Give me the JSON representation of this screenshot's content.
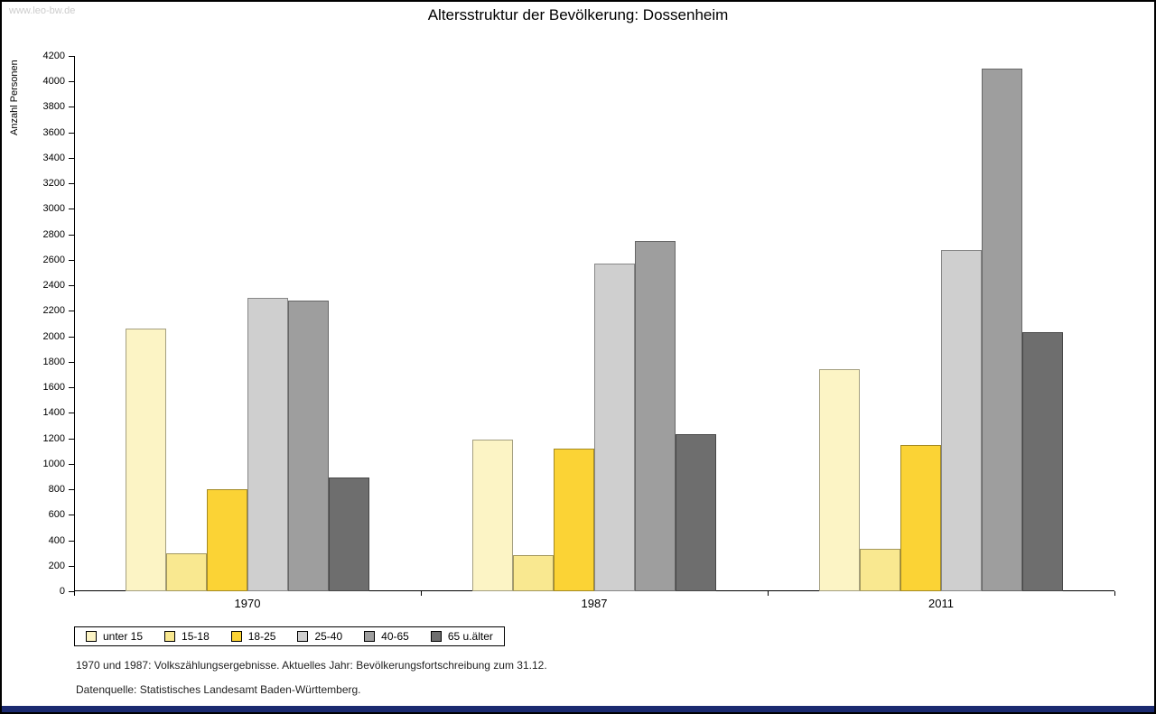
{
  "page": {
    "watermark": "www.leo-bw.de",
    "footnote1": "1970 und 1987: Volkszählungsergebnisse. Aktuelles Jahr: Bevölkerungsfortschreibung zum 31.12.",
    "footnote2": "Datenquelle: Statistisches Landesamt Baden-Württemberg.",
    "footer_color": "#1b2a70"
  },
  "chart_data": {
    "type": "bar",
    "title": "Altersstruktur der Bevölkerung: Dossenheim",
    "ylabel": "Anzahl Personen",
    "xlabel": "",
    "categories": [
      "1970",
      "1987",
      "2011"
    ],
    "ylim": [
      0,
      4200
    ],
    "ytick_step": 200,
    "grid": false,
    "legend_position": "bottom",
    "series": [
      {
        "name": "unter 15",
        "color": "#FCF4C5",
        "values": [
          2060,
          1190,
          1740
        ]
      },
      {
        "name": "15-18",
        "color": "#F9E890",
        "values": [
          300,
          280,
          330
        ]
      },
      {
        "name": "18-25",
        "color": "#FBD335",
        "values": [
          800,
          1120,
          1150
        ]
      },
      {
        "name": "25-40",
        "color": "#CFCFCF",
        "values": [
          2300,
          2570,
          2680
        ]
      },
      {
        "name": "40-65",
        "color": "#9E9E9E",
        "values": [
          2280,
          2750,
          4100
        ]
      },
      {
        "name": "65 u.älter",
        "color": "#6E6E6E",
        "values": [
          890,
          1230,
          2030
        ]
      }
    ]
  }
}
